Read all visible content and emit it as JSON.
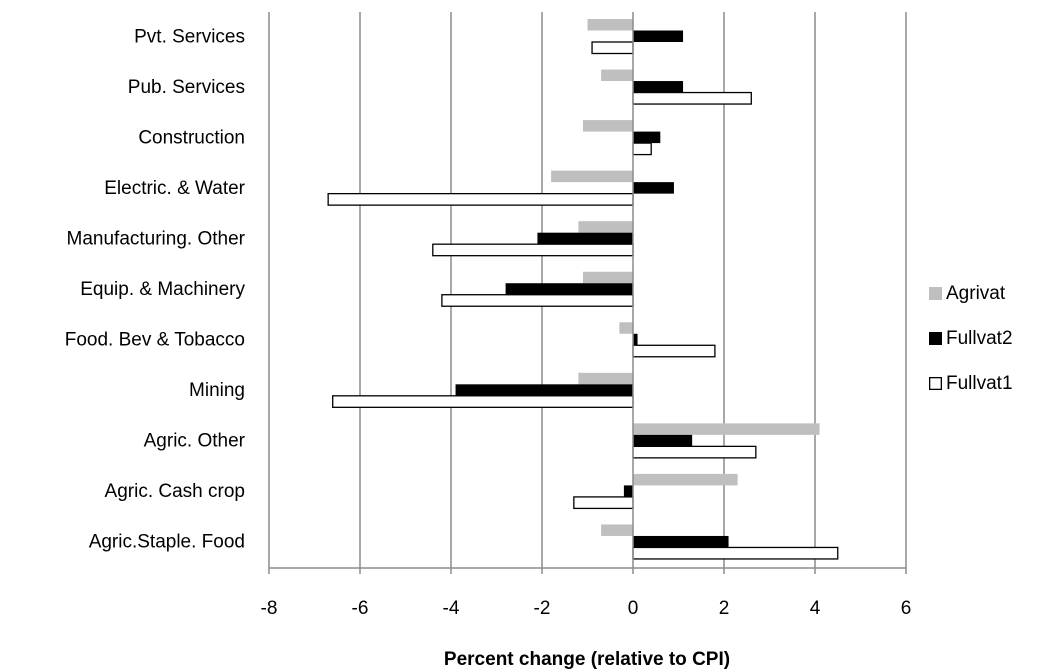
{
  "chart_data": {
    "type": "bar",
    "orientation": "horizontal",
    "title": "",
    "xlabel": "Percent change (relative to CPI)",
    "ylabel": "",
    "xlim": [
      -8,
      6
    ],
    "xticks": [
      -8,
      -6,
      -4,
      -2,
      0,
      2,
      4,
      6
    ],
    "xtick_labels": [
      "-8",
      "-6",
      "-4",
      "-2",
      "0",
      "2",
      "4",
      "6"
    ],
    "grid": "vertical major gridlines",
    "legend_position": "right",
    "categories": [
      "Pvt. Services",
      "Pub. Services",
      "Construction",
      "Electric. & Water",
      "Manufacturing. Other",
      "Equip. & Machinery",
      "Food. Bev & Tobacco",
      "Mining",
      "Agric. Other",
      "Agric. Cash crop",
      "Agric.Staple. Food"
    ],
    "series": [
      {
        "name": "Agrivat",
        "color": "#bfbfbf",
        "values": [
          -1.0,
          -0.7,
          -1.1,
          -1.8,
          -1.2,
          -1.1,
          -0.3,
          -1.2,
          4.1,
          2.3,
          -0.7
        ]
      },
      {
        "name": "Fullvat2",
        "color": "#000000",
        "values": [
          1.1,
          1.1,
          0.6,
          0.9,
          -2.1,
          -2.8,
          0.1,
          -3.9,
          1.3,
          -0.2,
          2.1
        ]
      },
      {
        "name": "Fullvat1",
        "color": "#ffffff",
        "stroke": "#000000",
        "values": [
          -0.9,
          2.6,
          0.4,
          -6.7,
          -4.4,
          -4.2,
          1.8,
          -6.6,
          2.7,
          -1.3,
          4.5
        ]
      }
    ]
  }
}
